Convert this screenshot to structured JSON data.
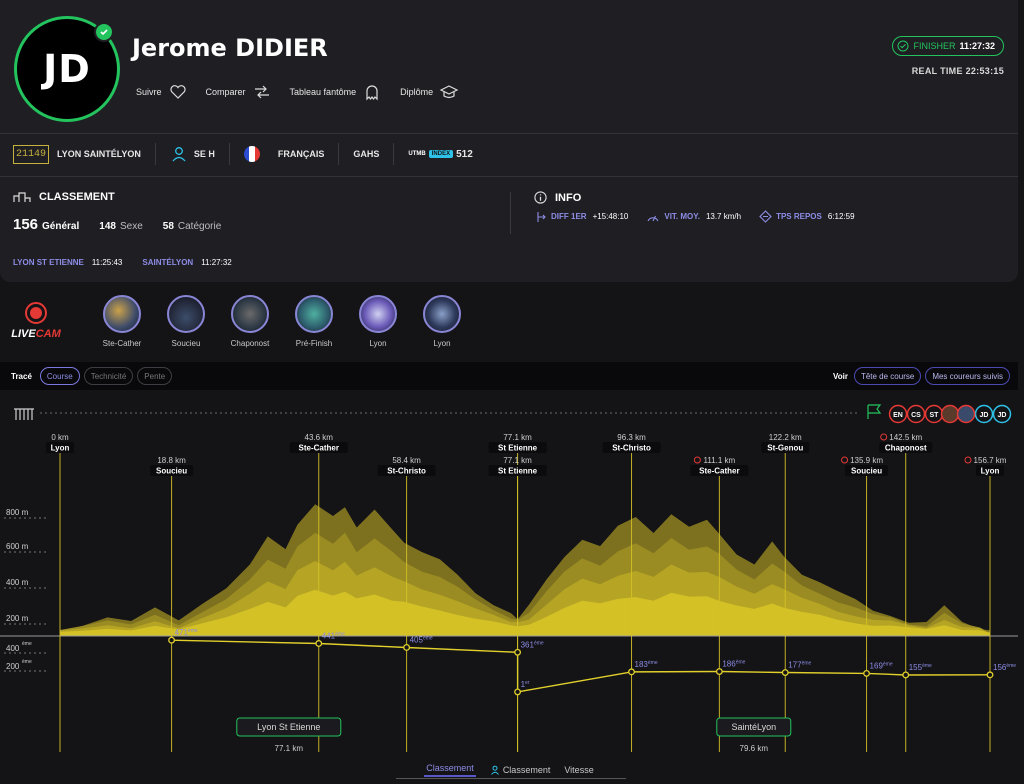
{
  "runner": {
    "initials": "JD",
    "name": "Jerome DIDIER",
    "status_label": "FINISHER",
    "finish_time": "11:27:32",
    "real_time": "REAL TIME 22:53:15"
  },
  "actions": [
    {
      "label": "Suivre",
      "icon": "heart-icon"
    },
    {
      "label": "Comparer",
      "icon": "compare-arrows-icon"
    },
    {
      "label": "Tableau fantôme",
      "icon": "ghost-icon"
    },
    {
      "label": "Diplôme",
      "icon": "graduation-cap-icon"
    }
  ],
  "info_row": {
    "bib": "21149",
    "race": "LYON SAINTÉLYON",
    "category": "SE H",
    "nationality": "FRANÇAIS",
    "club": "GAHS",
    "utmb_label": "UTMB",
    "index_label": "INDEX",
    "utmb_index": "512"
  },
  "classement": {
    "title": "CLASSEMENT",
    "general": "156",
    "general_label": "Général",
    "sexe": "148",
    "sexe_label": "Sexe",
    "categorie": "58",
    "categorie_label": "Catégorie"
  },
  "info": {
    "title": "INFO",
    "diff_label": "DIFF 1ER",
    "diff": "+15:48:10",
    "vit_label": "VIT. MOY.",
    "vit": "13.7 km/h",
    "repos_label": "TPS REPOS",
    "repos": "6:12:59"
  },
  "splits": [
    {
      "label": "LYON ST ETIENNE",
      "time": "11:25:43"
    },
    {
      "label": "SAINTÉLYON",
      "time": "11:27:32"
    }
  ],
  "livecam": {
    "prefix": "LIVE",
    "suffix": "CAM"
  },
  "cams": [
    "Ste-Cather",
    "Soucieu",
    "Chaponost",
    "Pré-Finish",
    "Lyon",
    "Lyon"
  ],
  "tracebar": {
    "label": "Tracé",
    "tabs": [
      "Course",
      "Technicité",
      "Pente"
    ],
    "voir": "Voir",
    "voir_tabs": [
      "Tête de course",
      "Mes coureurs suivis"
    ]
  },
  "markers": [
    "EN",
    "CS",
    "ST",
    "JD",
    "JD"
  ],
  "elevation_axis": [
    "800 m",
    "600 m",
    "400 m",
    "200 m"
  ],
  "rank_axis": [
    "400ème",
    "200ème"
  ],
  "checkpoints": [
    {
      "km": "0 km",
      "name": "Lyon",
      "x_km": 0,
      "row": 0,
      "alert": false
    },
    {
      "km": "18.8 km",
      "name": "Soucieu",
      "x_km": 18.8,
      "row": 1,
      "alert": false
    },
    {
      "km": "43.6 km",
      "name": "Ste-Cather",
      "x_km": 43.6,
      "row": 0,
      "alert": false
    },
    {
      "km": "58.4 km",
      "name": "St-Christo",
      "x_km": 58.4,
      "row": 1,
      "alert": false
    },
    {
      "km": "77.1 km",
      "name": "St Etienne",
      "x_km": 77.1,
      "row": 0,
      "alert": false
    },
    {
      "km": "77.1 km",
      "name": "St Etienne",
      "x_km": 77.1,
      "row": 1,
      "alert": false
    },
    {
      "km": "96.3 km",
      "name": "St-Christo",
      "x_km": 96.3,
      "row": 0,
      "alert": false
    },
    {
      "km": "111.1 km",
      "name": "Ste-Cather",
      "x_km": 111.1,
      "row": 1,
      "alert": true
    },
    {
      "km": "122.2 km",
      "name": "St-Genou",
      "x_km": 122.2,
      "row": 0,
      "alert": false
    },
    {
      "km": "135.9 km",
      "name": "Soucieu",
      "x_km": 135.9,
      "row": 1,
      "alert": true
    },
    {
      "km": "142.5 km",
      "name": "Chaponost",
      "x_km": 142.5,
      "row": 0,
      "alert": true
    },
    {
      "km": "156.7 km",
      "name": "Lyon",
      "x_km": 156.7,
      "row": 1,
      "alert": true
    }
  ],
  "ranks": [
    {
      "x_km": 18.8,
      "rank": 471,
      "label": "471ème"
    },
    {
      "x_km": 43.6,
      "rank": 441,
      "label": "441ème"
    },
    {
      "x_km": 58.4,
      "rank": 405,
      "label": "405ème"
    },
    {
      "x_km": 77.1,
      "rank": 361,
      "label": "361ème"
    },
    {
      "x_km": 77.1,
      "rank": 1,
      "label": "1er"
    },
    {
      "x_km": 96.3,
      "rank": 183,
      "label": "183ème"
    },
    {
      "x_km": 111.1,
      "rank": 186,
      "label": "186ème"
    },
    {
      "x_km": 122.2,
      "rank": 177,
      "label": "177ème"
    },
    {
      "x_km": 135.9,
      "rank": 169,
      "label": "169ème"
    },
    {
      "x_km": 142.5,
      "rank": 155,
      "label": "155ème"
    },
    {
      "x_km": 156.7,
      "rank": 156,
      "label": "156ème"
    }
  ],
  "segments": [
    {
      "name": "Lyon St Etienne",
      "distance": "77.1 km"
    },
    {
      "name": "SaintéLyon",
      "distance": "79.6 km"
    }
  ],
  "bottom_tabs": [
    "Classement",
    "Classement",
    "Vitesse"
  ],
  "colors": {
    "accent_green": "#23c45e",
    "accent_purple": "#8d8de6",
    "elevation_yellow": "#d4c126",
    "bib_gold": "#c4b13e"
  }
}
